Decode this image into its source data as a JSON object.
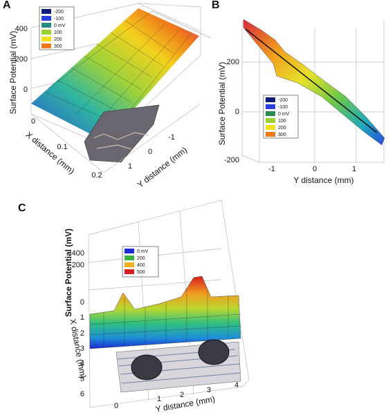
{
  "panels": [
    {
      "label": "A",
      "z_axis": {
        "title": "Surface Potential (mV)",
        "ticks": [
          "400",
          "200",
          "0"
        ]
      },
      "x_axis": {
        "title": "X distance (mm)",
        "ticks": [
          "0",
          "0.1",
          "0.2"
        ]
      },
      "y_axis": {
        "title": "Y distance (mm)",
        "ticks": [
          "-1",
          "0",
          "1"
        ]
      },
      "legend": [
        "-200",
        "-100",
        "0 mV",
        "100",
        "200",
        "300"
      ]
    },
    {
      "label": "B",
      "z_axis": {
        "title": "Surface Potential (mV)",
        "ticks": [
          "200",
          "0",
          "-200"
        ]
      },
      "x_axis": {
        "title": "Y distance (mm)",
        "ticks": [
          "-1",
          "0",
          "1"
        ]
      },
      "legend": [
        "-200",
        "-100",
        "0 mV",
        "100",
        "200",
        "300"
      ]
    },
    {
      "label": "C",
      "z_axis": {
        "title": "Surface Potential (mV)",
        "ticks": [
          "400",
          "200"
        ]
      },
      "x_axis": {
        "title": "X distance (mm)",
        "ticks": [
          "0",
          "1",
          "2",
          "3",
          "4",
          "5",
          "6"
        ]
      },
      "y_axis": {
        "title": "Y distance (mm)",
        "ticks": [
          "0",
          "1",
          "2",
          "3",
          "4"
        ]
      },
      "legend": [
        "0 mV",
        "200",
        "400",
        "500"
      ]
    }
  ]
}
